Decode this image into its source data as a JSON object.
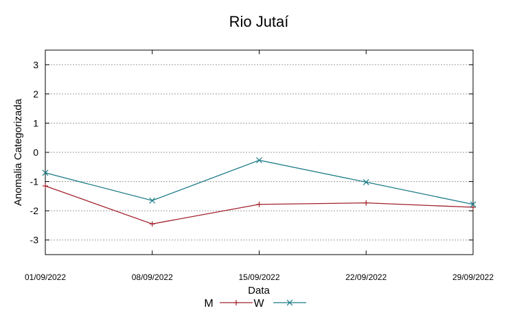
{
  "chart_data": {
    "type": "line",
    "title": "Rio Jutaí",
    "xlabel": "Data",
    "ylabel": "Anomalia Categorizada",
    "categories": [
      "01/09/2022",
      "08/09/2022",
      "15/09/2022",
      "22/09/2022",
      "29/09/2022"
    ],
    "ylim": [
      -3.5,
      3.5
    ],
    "yticks": [
      3,
      2,
      1,
      0,
      -1,
      -2,
      -3
    ],
    "ytick_labels": [
      "3",
      "2",
      "1",
      "0",
      "-1",
      "-2",
      "-3"
    ],
    "grid": "horizontal dotted",
    "legend_position": "bottom-center",
    "series": [
      {
        "name": "M",
        "color": "#a0202a",
        "marker": "plus",
        "values": [
          -1.15,
          -2.45,
          -1.78,
          -1.73,
          -1.88
        ]
      },
      {
        "name": "W",
        "color": "#1a7a86",
        "marker": "x",
        "values": [
          -0.7,
          -1.65,
          -0.27,
          -1.02,
          -1.78
        ]
      }
    ]
  }
}
